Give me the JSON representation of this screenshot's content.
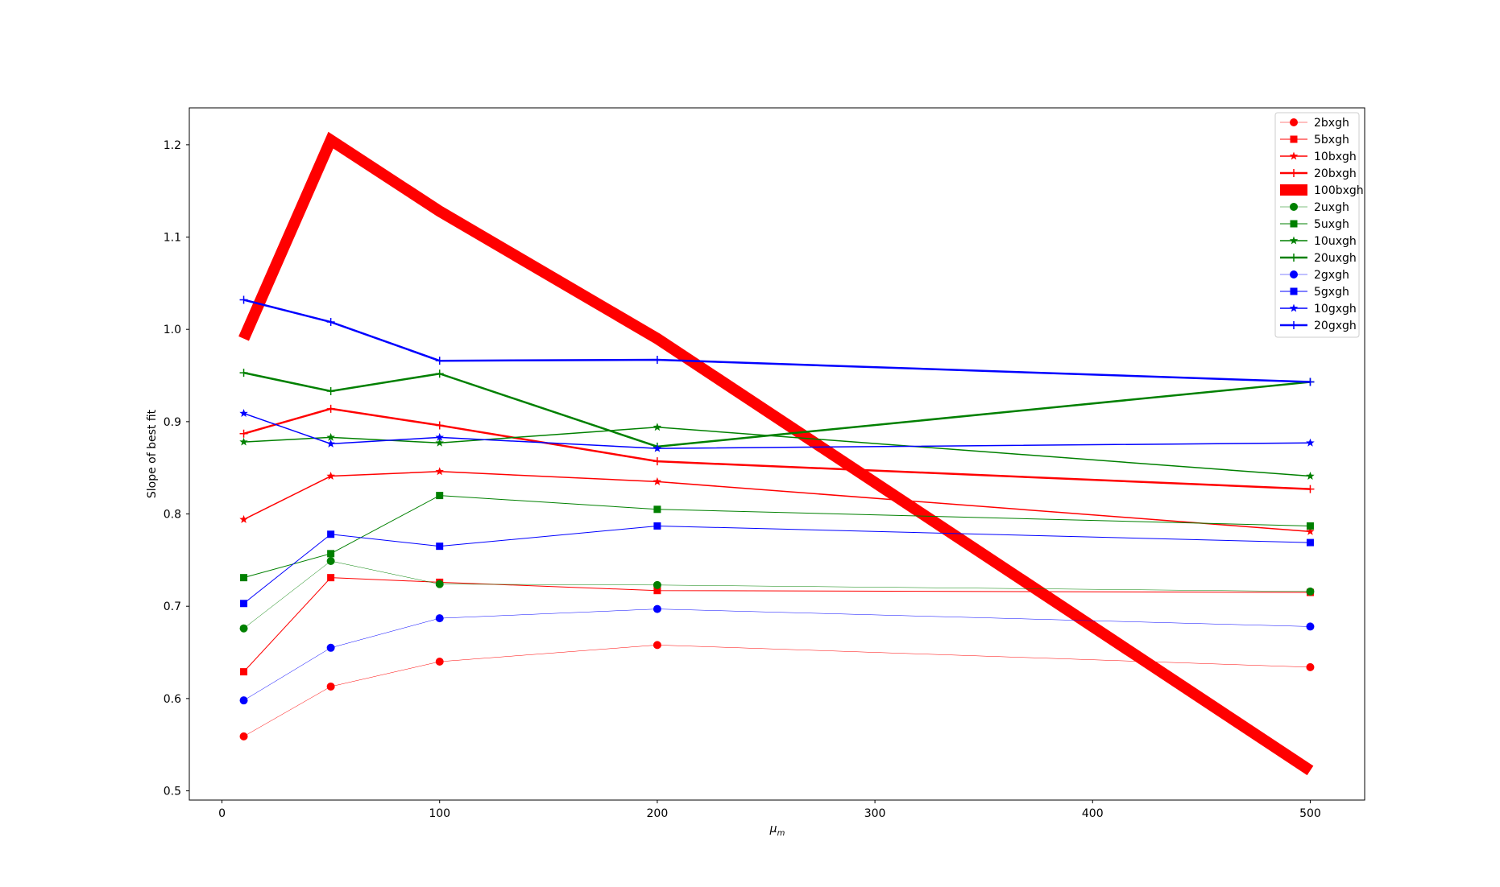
{
  "chart_data": {
    "type": "line",
    "title": "",
    "xlabel": "μ",
    "xlabel_sub": "m",
    "ylabel": "Slope of best fit",
    "x": [
      10,
      50,
      100,
      200,
      500
    ],
    "xlim": [
      -15,
      525
    ],
    "ylim": [
      0.49,
      1.24
    ],
    "xticks": [
      0,
      100,
      200,
      300,
      400,
      500
    ],
    "yticks": [
      0.5,
      0.6,
      0.7,
      0.8,
      0.9,
      1.0,
      1.1,
      1.2
    ],
    "xtick_labels": [
      "0",
      "100",
      "200",
      "300",
      "400",
      "500"
    ],
    "ytick_labels": [
      "0.5",
      "0.6",
      "0.7",
      "0.8",
      "0.9",
      "1.0",
      "1.1",
      "1.2"
    ],
    "grid": false,
    "legend_position": "top-right",
    "series": [
      {
        "name": "2bxgh",
        "color": "#ff0000",
        "marker": "circle",
        "line_width": 0.5,
        "values": [
          0.559,
          0.613,
          0.64,
          0.658,
          0.634
        ]
      },
      {
        "name": "5bxgh",
        "color": "#ff0000",
        "marker": "square",
        "line_width": 1,
        "values": [
          0.629,
          0.731,
          0.726,
          0.717,
          0.715
        ]
      },
      {
        "name": "10bxgh",
        "color": "#ff0000",
        "marker": "star",
        "line_width": 1.5,
        "values": [
          0.794,
          0.841,
          0.846,
          0.835,
          0.781
        ]
      },
      {
        "name": "20bxgh",
        "color": "#ff0000",
        "marker": "plus",
        "line_width": 2.5,
        "values": [
          0.887,
          0.914,
          0.896,
          0.857,
          0.827
        ]
      },
      {
        "name": "100bxgh",
        "color": "#ff0000",
        "marker": "none",
        "line_width": 14,
        "values": [
          0.99,
          1.205,
          1.128,
          0.99,
          0.522
        ]
      },
      {
        "name": "2uxgh",
        "color": "#008000",
        "marker": "circle",
        "line_width": 0.5,
        "values": [
          0.676,
          0.749,
          0.724,
          0.723,
          0.716
        ]
      },
      {
        "name": "5uxgh",
        "color": "#008000",
        "marker": "square",
        "line_width": 1,
        "values": [
          0.731,
          0.757,
          0.82,
          0.805,
          0.787
        ]
      },
      {
        "name": "10uxgh",
        "color": "#008000",
        "marker": "star",
        "line_width": 1.5,
        "values": [
          0.878,
          0.883,
          0.877,
          0.894,
          0.841
        ]
      },
      {
        "name": "20uxgh",
        "color": "#008000",
        "marker": "plus",
        "line_width": 2.5,
        "values": [
          0.953,
          0.933,
          0.952,
          0.873,
          0.943
        ]
      },
      {
        "name": "2gxgh",
        "color": "#0000ff",
        "marker": "circle",
        "line_width": 0.5,
        "values": [
          0.598,
          0.655,
          0.687,
          0.697,
          0.678
        ]
      },
      {
        "name": "5gxgh",
        "color": "#0000ff",
        "marker": "square",
        "line_width": 1,
        "values": [
          0.703,
          0.778,
          0.765,
          0.787,
          0.769
        ]
      },
      {
        "name": "10gxgh",
        "color": "#0000ff",
        "marker": "star",
        "line_width": 1.5,
        "values": [
          0.909,
          0.876,
          0.883,
          0.871,
          0.877
        ]
      },
      {
        "name": "20gxgh",
        "color": "#0000ff",
        "marker": "plus",
        "line_width": 2.5,
        "values": [
          1.032,
          1.008,
          0.966,
          0.967,
          0.943
        ]
      }
    ]
  }
}
